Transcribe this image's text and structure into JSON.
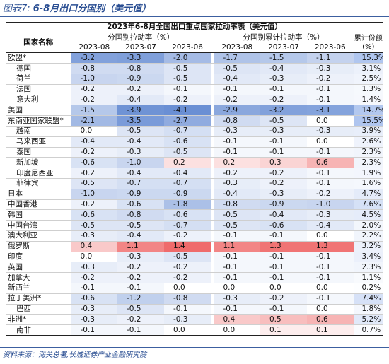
{
  "figure": {
    "label": "图表7:",
    "title": "6-8月出口分国别（美元值）"
  },
  "table": {
    "title": "2023年6-8月全国出口重点国家拉动率表（美元值）",
    "name_header": "国家名称",
    "group1": "分国别拉动率（%）",
    "group2": "分国别累计拉动率（%）",
    "share_header_line1": "累计份额",
    "share_header_line2": "(%)",
    "periods": [
      "2023-08",
      "2023-07",
      "2023-06"
    ],
    "rows": [
      {
        "name": "欧盟*",
        "sub": false,
        "g1": [
          -3.2,
          -3.3,
          -2.0
        ],
        "g2": [
          -1.7,
          -1.5,
          -1.1
        ],
        "share": "15.3%"
      },
      {
        "name": "德国",
        "sub": true,
        "g1": [
          -0.8,
          -0.8,
          -0.5
        ],
        "g2": [
          -0.5,
          -0.4,
          -0.3
        ],
        "share": "3.1%"
      },
      {
        "name": "荷兰",
        "sub": true,
        "g1": [
          -1.0,
          -0.9,
          -0.5
        ],
        "g2": [
          -0.4,
          -0.3,
          -0.2
        ],
        "share": "2.5%"
      },
      {
        "name": "法国",
        "sub": true,
        "g1": [
          -0.2,
          -0.2,
          -0.1
        ],
        "g2": [
          -0.1,
          -0.1,
          -0.1
        ],
        "share": "1.3%"
      },
      {
        "name": "意大利",
        "sub": true,
        "g1": [
          -0.2,
          -0.4,
          -0.2
        ],
        "g2": [
          -0.2,
          -0.2,
          -0.1
        ],
        "share": "1.4%"
      },
      {
        "name": "美国",
        "sub": false,
        "g1": [
          -1.5,
          -3.9,
          -4.1
        ],
        "g2": [
          -2.9,
          -3.2,
          -3.1
        ],
        "share": "14.7%"
      },
      {
        "name": "东南亚国家联盟*",
        "sub": false,
        "g1": [
          -2.1,
          -3.5,
          -2.7
        ],
        "g2": [
          -0.8,
          -0.5,
          0.0
        ],
        "share": "15.5%"
      },
      {
        "name": "越南",
        "sub": true,
        "g1": [
          0.0,
          -0.5,
          -0.7
        ],
        "g2": [
          -0.3,
          -0.3,
          -0.3
        ],
        "share": "3.9%"
      },
      {
        "name": "马来西亚",
        "sub": true,
        "g1": [
          -0.4,
          -0.4,
          -0.6
        ],
        "g2": [
          -0.1,
          -0.1,
          0.0
        ],
        "share": "2.6%"
      },
      {
        "name": "泰国",
        "sub": true,
        "g1": [
          -0.2,
          -0.3,
          -0.5
        ],
        "g2": [
          -0.1,
          -0.1,
          -0.1
        ],
        "share": "2.3%"
      },
      {
        "name": "新加坡",
        "sub": true,
        "g1": [
          -0.6,
          -1.0,
          0.2
        ],
        "g2": [
          0.2,
          0.3,
          0.6
        ],
        "share": "2.3%"
      },
      {
        "name": "印度尼西亚",
        "sub": true,
        "g1": [
          -0.2,
          -0.4,
          -0.4
        ],
        "g2": [
          -0.2,
          -0.2,
          -0.1
        ],
        "share": "1.9%"
      },
      {
        "name": "菲律宾",
        "sub": true,
        "g1": [
          -0.5,
          -0.7,
          -0.7
        ],
        "g2": [
          -0.3,
          -0.2,
          -0.1
        ],
        "share": "1.6%"
      },
      {
        "name": "日本",
        "sub": false,
        "g1": [
          -1.0,
          -0.9,
          -0.9
        ],
        "g2": [
          -0.4,
          -0.3,
          -0.2
        ],
        "share": "4.7%"
      },
      {
        "name": "中国香港",
        "sub": false,
        "g1": [
          -0.2,
          -0.6,
          -1.8
        ],
        "g2": [
          -0.8,
          -0.9,
          -1.0
        ],
        "share": "7.6%"
      },
      {
        "name": "韩国",
        "sub": false,
        "g1": [
          -0.6,
          -0.8,
          -0.6
        ],
        "g2": [
          -0.5,
          -0.4,
          -0.3
        ],
        "share": "4.5%"
      },
      {
        "name": "中国台湾",
        "sub": false,
        "g1": [
          -0.5,
          -0.5,
          -0.7
        ],
        "g2": [
          -0.5,
          -0.6,
          -0.4
        ],
        "share": "2.0%"
      },
      {
        "name": "澳大利亚",
        "sub": false,
        "g1": [
          -0.3,
          -0.4,
          -0.2
        ],
        "g2": [
          -0.1,
          -0.1,
          0.0
        ],
        "share": "2.2%"
      },
      {
        "name": "俄罗斯",
        "sub": false,
        "g1": [
          0.4,
          1.1,
          1.4
        ],
        "g2": [
          1.1,
          1.3,
          1.3
        ],
        "share": "3.2%"
      },
      {
        "name": "印度",
        "sub": false,
        "g1": [
          0.0,
          -0.3,
          -0.5
        ],
        "g2": [
          -0.1,
          -0.1,
          -0.1
        ],
        "share": "3.4%"
      },
      {
        "name": "英国",
        "sub": false,
        "g1": [
          -0.3,
          -0.2,
          -0.2
        ],
        "g2": [
          -0.1,
          -0.1,
          -0.1
        ],
        "share": "2.3%"
      },
      {
        "name": "加拿大",
        "sub": false,
        "g1": [
          -0.2,
          -0.2,
          -0.2
        ],
        "g2": [
          -0.1,
          -0.1,
          -0.1
        ],
        "share": "1.1%"
      },
      {
        "name": "新西兰",
        "sub": false,
        "g1": [
          -0.1,
          -0.1,
          0.0
        ],
        "g2": [
          0.0,
          0.0,
          0.0
        ],
        "share": "0.2%"
      },
      {
        "name": "拉丁美洲*",
        "sub": false,
        "g1": [
          -0.6,
          -1.2,
          -0.8
        ],
        "g2": [
          -0.3,
          -0.2,
          -0.1
        ],
        "share": "7.4%"
      },
      {
        "name": "巴西",
        "sub": true,
        "g1": [
          -0.3,
          -0.5,
          -0.1
        ],
        "g2": [
          -0.1,
          -0.1,
          0.0
        ],
        "share": "1.8%"
      },
      {
        "name": "非洲*",
        "sub": false,
        "g1": [
          -0.3,
          -0.2,
          -0.3
        ],
        "g2": [
          0.4,
          0.5,
          0.6
        ],
        "share": "5.2%"
      },
      {
        "name": "南非",
        "sub": true,
        "g1": [
          -0.1,
          -0.1,
          0.0
        ],
        "g2": [
          0.0,
          0.1,
          0.1
        ],
        "share": "0.7%"
      }
    ]
  },
  "source_note": "资料来源：海关总署,长城证券产业金融研究院",
  "colors": {
    "accent": "#2b4f93",
    "negative_strong": "#6a8fd4",
    "positive_strong": "#ef6b6b",
    "neutral": "#ffffff"
  }
}
